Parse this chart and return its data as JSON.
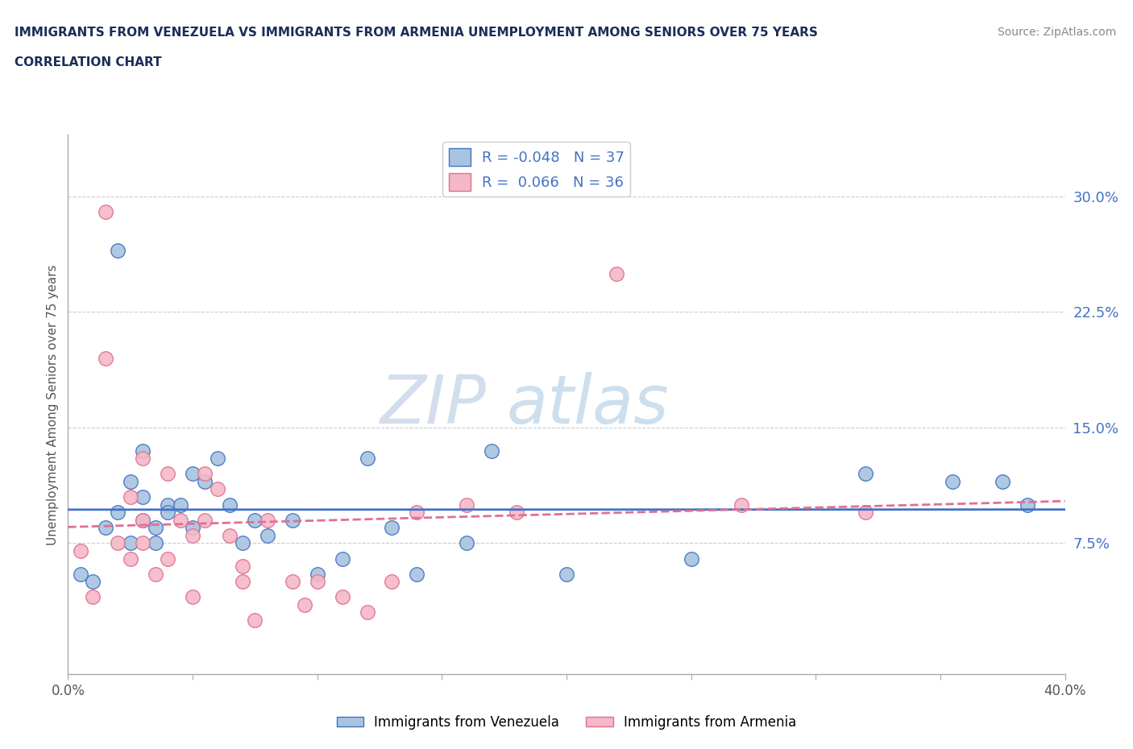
{
  "title_line1": "IMMIGRANTS FROM VENEZUELA VS IMMIGRANTS FROM ARMENIA UNEMPLOYMENT AMONG SENIORS OVER 75 YEARS",
  "title_line2": "CORRELATION CHART",
  "source_text": "Source: ZipAtlas.com",
  "ylabel": "Unemployment Among Seniors over 75 years",
  "legend_bottom": [
    "Immigrants from Venezuela",
    "Immigrants from Armenia"
  ],
  "r_venezuela": -0.048,
  "n_venezuela": 37,
  "r_armenia": 0.066,
  "n_armenia": 36,
  "xlim": [
    0.0,
    0.4
  ],
  "ylim": [
    -0.01,
    0.34
  ],
  "right_yticks": [
    0.075,
    0.15,
    0.225,
    0.3
  ],
  "right_yticklabels": [
    "7.5%",
    "15.0%",
    "22.5%",
    "30.0%"
  ],
  "color_venezuela": "#a8c4e0",
  "color_armenia": "#f4b8c8",
  "line_color_venezuela": "#4472c4",
  "line_color_armenia": "#e07090",
  "venezuela_x": [
    0.005,
    0.01,
    0.015,
    0.02,
    0.02,
    0.025,
    0.025,
    0.03,
    0.03,
    0.03,
    0.035,
    0.035,
    0.04,
    0.04,
    0.045,
    0.05,
    0.05,
    0.055,
    0.06,
    0.065,
    0.07,
    0.075,
    0.08,
    0.09,
    0.1,
    0.11,
    0.12,
    0.13,
    0.14,
    0.16,
    0.17,
    0.2,
    0.25,
    0.32,
    0.355,
    0.375,
    0.385
  ],
  "venezuela_y": [
    0.055,
    0.05,
    0.085,
    0.265,
    0.095,
    0.115,
    0.075,
    0.135,
    0.105,
    0.09,
    0.085,
    0.075,
    0.1,
    0.095,
    0.1,
    0.12,
    0.085,
    0.115,
    0.13,
    0.1,
    0.075,
    0.09,
    0.08,
    0.09,
    0.055,
    0.065,
    0.13,
    0.085,
    0.055,
    0.075,
    0.135,
    0.055,
    0.065,
    0.12,
    0.115,
    0.115,
    0.1
  ],
  "armenia_x": [
    0.005,
    0.01,
    0.015,
    0.015,
    0.02,
    0.025,
    0.025,
    0.03,
    0.03,
    0.03,
    0.035,
    0.04,
    0.04,
    0.045,
    0.05,
    0.05,
    0.055,
    0.055,
    0.06,
    0.065,
    0.07,
    0.07,
    0.075,
    0.08,
    0.09,
    0.095,
    0.1,
    0.11,
    0.12,
    0.13,
    0.14,
    0.16,
    0.18,
    0.22,
    0.27,
    0.32
  ],
  "armenia_y": [
    0.07,
    0.04,
    0.195,
    0.29,
    0.075,
    0.105,
    0.065,
    0.13,
    0.09,
    0.075,
    0.055,
    0.12,
    0.065,
    0.09,
    0.08,
    0.04,
    0.12,
    0.09,
    0.11,
    0.08,
    0.06,
    0.05,
    0.025,
    0.09,
    0.05,
    0.035,
    0.05,
    0.04,
    0.03,
    0.05,
    0.095,
    0.1,
    0.095,
    0.25,
    0.1,
    0.095
  ]
}
